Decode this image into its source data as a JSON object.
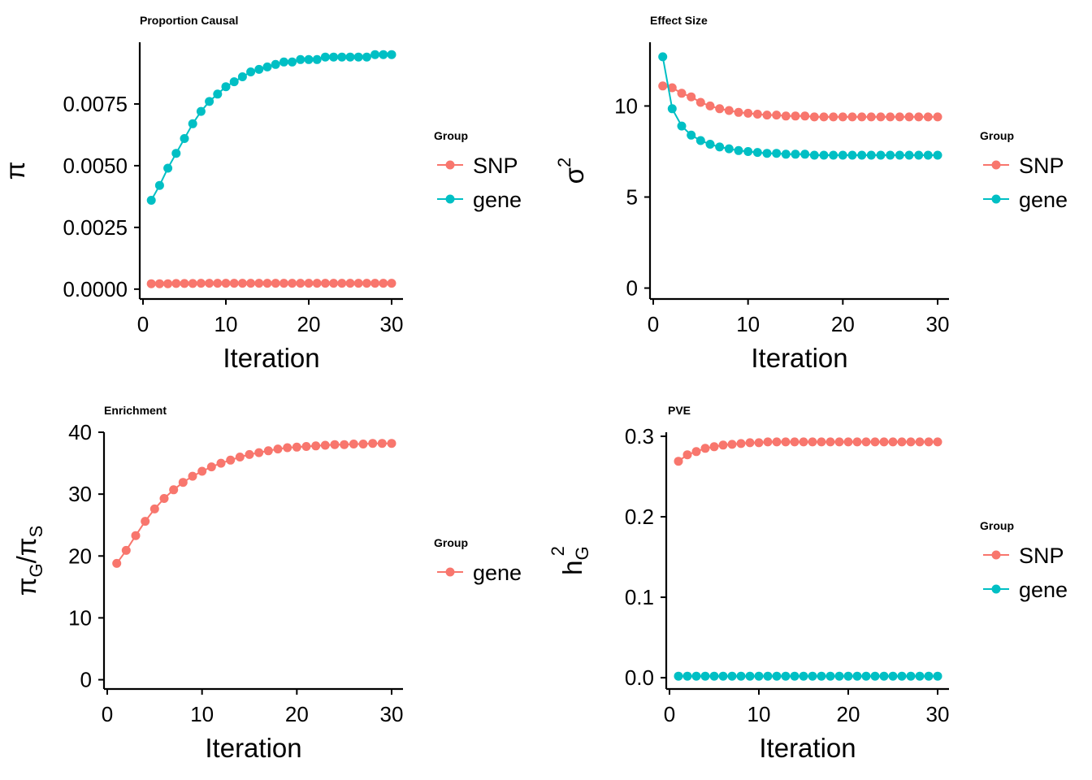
{
  "colors": {
    "snp": "#F8766D",
    "gene": "#00BFC4"
  },
  "chart_data": [
    {
      "type": "line",
      "title": "Proportion Causal",
      "xlabel": "Iteration",
      "ylabel_symbol": "π",
      "xlim": [
        0,
        30
      ],
      "ylim": [
        -0.0004,
        0.01
      ],
      "xticks": [
        0,
        10,
        20,
        30
      ],
      "xtick_labels": [
        "0",
        "10",
        "20",
        "30"
      ],
      "yticks": [
        0,
        0.0025,
        0.005,
        0.0075
      ],
      "ytick_labels": [
        "0.0000",
        "0.0025",
        "0.0050",
        "0.0075"
      ],
      "legend": {
        "title": "Group",
        "entries": [
          "SNP",
          "gene"
        ],
        "placement": "right"
      },
      "series": [
        {
          "name": "SNP",
          "color": "#F8766D",
          "x": [
            1,
            2,
            3,
            4,
            5,
            6,
            7,
            8,
            9,
            10,
            11,
            12,
            13,
            14,
            15,
            16,
            17,
            18,
            19,
            20,
            21,
            22,
            23,
            24,
            25,
            26,
            27,
            28,
            29,
            30
          ],
          "values": [
            0.00022,
            0.00022,
            0.00022,
            0.00023,
            0.00023,
            0.00023,
            0.00024,
            0.00024,
            0.00024,
            0.00024,
            0.00024,
            0.00024,
            0.00024,
            0.00024,
            0.00024,
            0.00024,
            0.00024,
            0.00024,
            0.00024,
            0.00024,
            0.00024,
            0.00024,
            0.00024,
            0.00024,
            0.00024,
            0.00024,
            0.00024,
            0.00024,
            0.00024,
            0.00024
          ]
        },
        {
          "name": "gene",
          "color": "#00BFC4",
          "x": [
            1,
            2,
            3,
            4,
            5,
            6,
            7,
            8,
            9,
            10,
            11,
            12,
            13,
            14,
            15,
            16,
            17,
            18,
            19,
            20,
            21,
            22,
            23,
            24,
            25,
            26,
            27,
            28,
            29,
            30
          ],
          "values": [
            0.0036,
            0.0042,
            0.0049,
            0.0055,
            0.0061,
            0.0067,
            0.0072,
            0.0076,
            0.0079,
            0.0082,
            0.0084,
            0.0086,
            0.0088,
            0.0089,
            0.009,
            0.0091,
            0.0092,
            0.0092,
            0.0093,
            0.0093,
            0.0093,
            0.0094,
            0.0094,
            0.0094,
            0.0094,
            0.0094,
            0.0094,
            0.0095,
            0.0095,
            0.0095
          ]
        }
      ]
    },
    {
      "type": "line",
      "title": "Effect Size",
      "xlabel": "Iteration",
      "ylabel_symbol": "σ",
      "ylabel_sup": "2",
      "xlim": [
        0,
        30
      ],
      "ylim": [
        -0.6,
        13.5
      ],
      "xticks": [
        0,
        10,
        20,
        30
      ],
      "xtick_labels": [
        "0",
        "10",
        "20",
        "30"
      ],
      "yticks": [
        0,
        5,
        10
      ],
      "ytick_labels": [
        "0",
        "5",
        "10"
      ],
      "legend": {
        "title": "Group",
        "entries": [
          "SNP",
          "gene"
        ],
        "placement": "right"
      },
      "series": [
        {
          "name": "SNP",
          "color": "#F8766D",
          "x": [
            1,
            2,
            3,
            4,
            5,
            6,
            7,
            8,
            9,
            10,
            11,
            12,
            13,
            14,
            15,
            16,
            17,
            18,
            19,
            20,
            21,
            22,
            23,
            24,
            25,
            26,
            27,
            28,
            29,
            30
          ],
          "values": [
            11.1,
            11.0,
            10.7,
            10.5,
            10.2,
            10.0,
            9.85,
            9.75,
            9.65,
            9.6,
            9.55,
            9.5,
            9.5,
            9.45,
            9.45,
            9.45,
            9.4,
            9.4,
            9.4,
            9.4,
            9.4,
            9.4,
            9.4,
            9.4,
            9.4,
            9.4,
            9.4,
            9.4,
            9.4,
            9.4
          ]
        },
        {
          "name": "gene",
          "color": "#00BFC4",
          "x": [
            1,
            2,
            3,
            4,
            5,
            6,
            7,
            8,
            9,
            10,
            11,
            12,
            13,
            14,
            15,
            16,
            17,
            18,
            19,
            20,
            21,
            22,
            23,
            24,
            25,
            26,
            27,
            28,
            29,
            30
          ],
          "values": [
            12.7,
            9.85,
            8.9,
            8.4,
            8.1,
            7.9,
            7.75,
            7.65,
            7.55,
            7.5,
            7.45,
            7.4,
            7.4,
            7.35,
            7.35,
            7.35,
            7.3,
            7.3,
            7.3,
            7.3,
            7.3,
            7.3,
            7.3,
            7.3,
            7.3,
            7.3,
            7.3,
            7.3,
            7.3,
            7.3
          ]
        }
      ]
    },
    {
      "type": "line",
      "title": "Enrichment",
      "xlabel": "Iteration",
      "ylabel_symbol": "π",
      "ylabel_fraction": [
        "G",
        "S"
      ],
      "xlim": [
        0,
        30
      ],
      "ylim": [
        -1.5,
        40
      ],
      "xticks": [
        0,
        10,
        20,
        30
      ],
      "xtick_labels": [
        "0",
        "10",
        "20",
        "30"
      ],
      "yticks": [
        0,
        10,
        20,
        30,
        40
      ],
      "ytick_labels": [
        "0",
        "10",
        "20",
        "30",
        "40"
      ],
      "legend": {
        "title": "Group",
        "entries": [
          "gene"
        ],
        "placement": "right"
      },
      "series": [
        {
          "name": "gene",
          "color": "#F8766D",
          "x": [
            1,
            2,
            3,
            4,
            5,
            6,
            7,
            8,
            9,
            10,
            11,
            12,
            13,
            14,
            15,
            16,
            17,
            18,
            19,
            20,
            21,
            22,
            23,
            24,
            25,
            26,
            27,
            28,
            29,
            30
          ],
          "values": [
            18.8,
            20.9,
            23.3,
            25.6,
            27.6,
            29.3,
            30.7,
            31.9,
            32.9,
            33.7,
            34.4,
            35.0,
            35.5,
            36.0,
            36.4,
            36.7,
            37.0,
            37.3,
            37.5,
            37.6,
            37.7,
            37.8,
            37.9,
            38.0,
            38.0,
            38.1,
            38.1,
            38.2,
            38.2,
            38.2
          ]
        }
      ]
    },
    {
      "type": "line",
      "title": "PVE",
      "xlabel": "Iteration",
      "ylabel_symbol": "h",
      "ylabel_sup": "2",
      "ylabel_sub": "G",
      "xlim": [
        0,
        30
      ],
      "ylim": [
        -0.014,
        0.305
      ],
      "xticks": [
        0,
        10,
        20,
        30
      ],
      "xtick_labels": [
        "0",
        "10",
        "20",
        "30"
      ],
      "yticks": [
        0,
        0.1,
        0.2,
        0.3
      ],
      "ytick_labels": [
        "0.0",
        "0.1",
        "0.2",
        "0.3"
      ],
      "legend": {
        "title": "Group",
        "entries": [
          "SNP",
          "gene"
        ],
        "placement": "right"
      },
      "series": [
        {
          "name": "SNP",
          "color": "#F8766D",
          "x": [
            1,
            2,
            3,
            4,
            5,
            6,
            7,
            8,
            9,
            10,
            11,
            12,
            13,
            14,
            15,
            16,
            17,
            18,
            19,
            20,
            21,
            22,
            23,
            24,
            25,
            26,
            27,
            28,
            29,
            30
          ],
          "values": [
            0.269,
            0.277,
            0.281,
            0.285,
            0.287,
            0.289,
            0.29,
            0.291,
            0.292,
            0.292,
            0.293,
            0.293,
            0.293,
            0.293,
            0.293,
            0.293,
            0.293,
            0.293,
            0.293,
            0.293,
            0.293,
            0.293,
            0.293,
            0.293,
            0.293,
            0.293,
            0.293,
            0.293,
            0.293,
            0.293
          ]
        },
        {
          "name": "gene",
          "color": "#00BFC4",
          "x": [
            1,
            2,
            3,
            4,
            5,
            6,
            7,
            8,
            9,
            10,
            11,
            12,
            13,
            14,
            15,
            16,
            17,
            18,
            19,
            20,
            21,
            22,
            23,
            24,
            25,
            26,
            27,
            28,
            29,
            30
          ],
          "values": [
            0.002,
            0.002,
            0.002,
            0.002,
            0.002,
            0.002,
            0.002,
            0.002,
            0.002,
            0.002,
            0.002,
            0.002,
            0.002,
            0.002,
            0.002,
            0.002,
            0.002,
            0.002,
            0.002,
            0.002,
            0.002,
            0.002,
            0.002,
            0.002,
            0.002,
            0.002,
            0.002,
            0.002,
            0.002,
            0.002
          ]
        }
      ]
    }
  ]
}
